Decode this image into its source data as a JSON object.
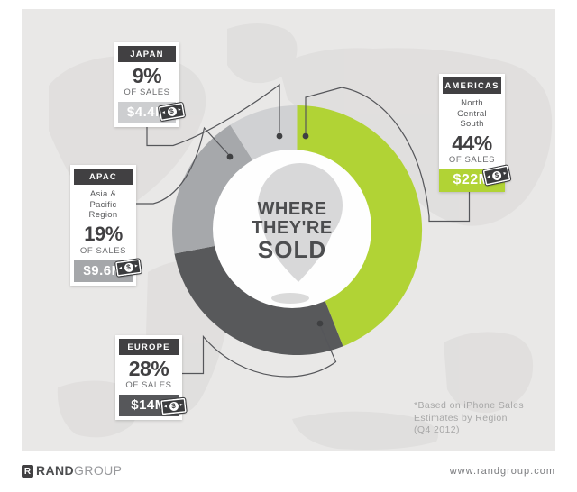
{
  "center": {
    "line1": "WHERE",
    "line2": "THEY'RE",
    "line3": "SOLD"
  },
  "money_icon": {
    "symbol": "$"
  },
  "regions": [
    {
      "name": "JAPAN",
      "percent": "9%",
      "of_sales_label": "OF SALES",
      "amount": "$4.4M",
      "band_color": "#cdced0"
    },
    {
      "name": "APAC",
      "sub1": "Asia &",
      "sub2": "Pacific",
      "sub3": "Region",
      "percent": "19%",
      "of_sales_label": "OF SALES",
      "amount": "$9.6M",
      "band_color": "#a5a7aa"
    },
    {
      "name": "EUROPE",
      "percent": "28%",
      "of_sales_label": "OF SALES",
      "amount": "$14M",
      "band_color": "#56575a"
    },
    {
      "name": "AMERICAS",
      "sub1": "North",
      "sub2": "Central",
      "sub3": "South",
      "percent": "44%",
      "of_sales_label": "OF SALES",
      "amount": "$22M",
      "band_color": "#b1d335"
    }
  ],
  "chart_data": {
    "type": "pie",
    "donut": true,
    "title": "WHERE THEY'RE SOLD",
    "categories": [
      "AMERICAS",
      "EUROPE",
      "APAC",
      "JAPAN"
    ],
    "values": [
      44,
      28,
      19,
      9
    ],
    "value_labels": [
      "$22M",
      "$14M",
      "$9.6M",
      "$4.4M"
    ],
    "colors": [
      "#b1d335",
      "#58595b",
      "#a6a8ab",
      "#d0d1d3"
    ],
    "start_angle_deg": 0,
    "direction": "clockwise",
    "legend_position": "callout-cards",
    "note": "*Based on iPhone Sales Estimates by Region (Q4 2012)"
  },
  "footnote": {
    "line1": "*Based on iPhone Sales",
    "line2": "Estimates by Region",
    "line3": "(Q4 2012)"
  },
  "footer": {
    "brand_icon": "R",
    "brand_bold": "RAND",
    "brand_light": "GROUP",
    "website": "www.randgroup.com"
  }
}
